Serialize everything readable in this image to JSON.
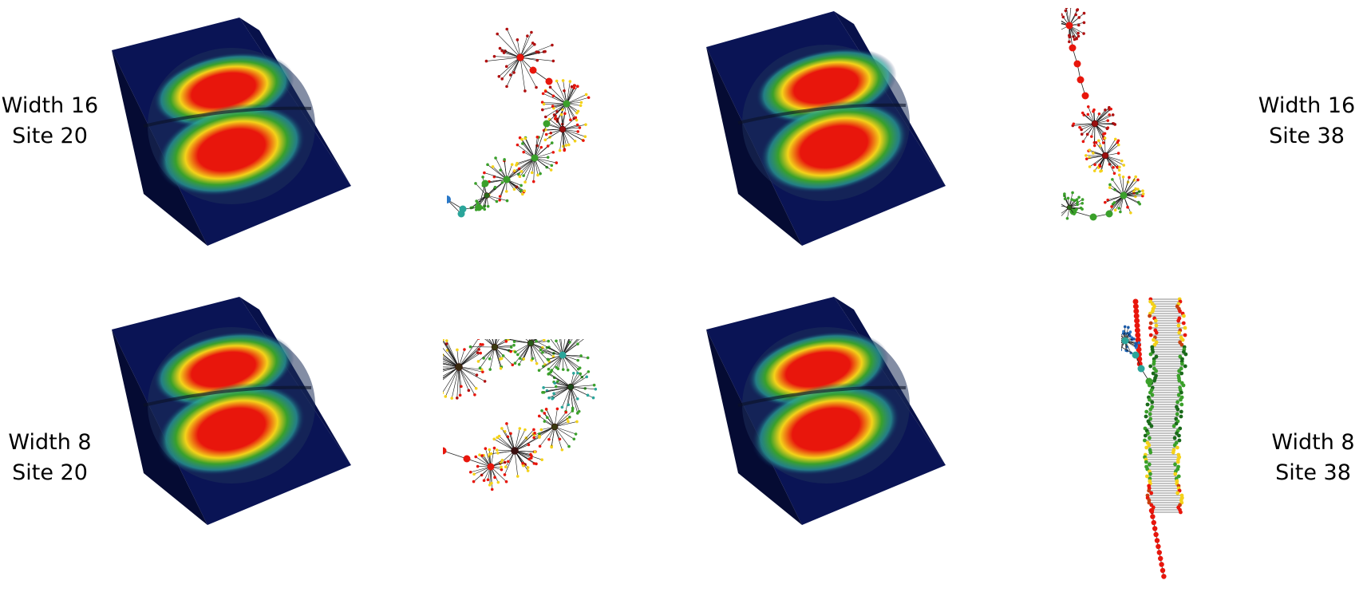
{
  "labels": {
    "top_left": {
      "line1": "Width 16",
      "line2": "Site 20"
    },
    "top_right": {
      "line1": "Width 16",
      "line2": "Site 38"
    },
    "bottom_left": {
      "line1": "Width 8",
      "line2": "Site 20"
    },
    "bottom_right": {
      "line1": "Width 8",
      "line2": "Site 38"
    }
  },
  "colors": {
    "wedge": "#0a1455",
    "red": "#e8160c",
    "yellow": "#f4d21a",
    "green": "#3aa02a",
    "teal": "#2aa59a",
    "blue": "#2a78c8",
    "navy": "#1a2a6a"
  },
  "panels": [
    {
      "name": "volume-render-width16-site20",
      "kind": "volume"
    },
    {
      "name": "graph-width16-site20",
      "kind": "graph"
    },
    {
      "name": "volume-render-width16-site38",
      "kind": "volume"
    },
    {
      "name": "graph-width16-site38",
      "kind": "graph"
    },
    {
      "name": "volume-render-width8-site20",
      "kind": "volume"
    },
    {
      "name": "graph-width8-site20",
      "kind": "graph"
    },
    {
      "name": "volume-render-width8-site38",
      "kind": "volume"
    },
    {
      "name": "graph-width8-site38",
      "kind": "graph"
    }
  ]
}
